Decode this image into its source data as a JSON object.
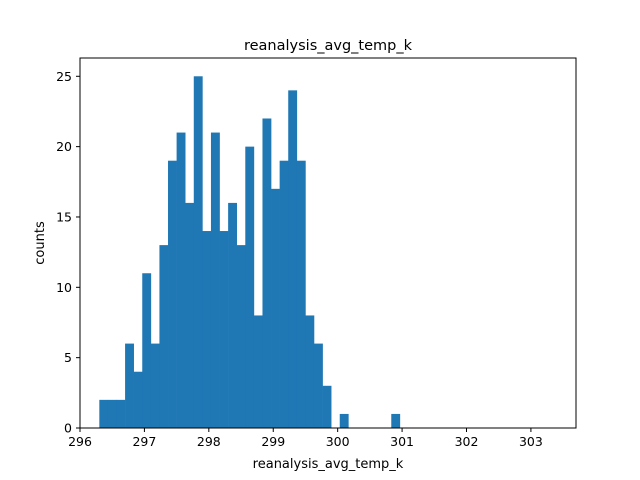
{
  "chart_data": {
    "type": "bar",
    "title": "reanalysis_avg_temp_k",
    "xlabel": "reanalysis_avg_temp_k",
    "ylabel": "counts",
    "grid": false,
    "legend": "none",
    "bar_color": "#1f77b4",
    "xlim": [
      296.0,
      303.7
    ],
    "ylim": [
      0,
      26.3
    ],
    "x_ticks": [
      296,
      297,
      298,
      299,
      300,
      301,
      302,
      303
    ],
    "y_ticks": [
      0,
      5,
      10,
      15,
      20,
      25
    ],
    "bin_start": 296.3,
    "bin_width": 0.1333,
    "values": [
      2,
      2,
      2,
      6,
      4,
      11,
      6,
      13,
      19,
      21,
      16,
      25,
      14,
      21,
      14,
      16,
      13,
      20,
      8,
      22,
      17,
      19,
      24,
      19,
      8,
      6,
      3,
      0,
      1,
      0,
      0,
      0,
      0,
      0,
      1
    ]
  }
}
